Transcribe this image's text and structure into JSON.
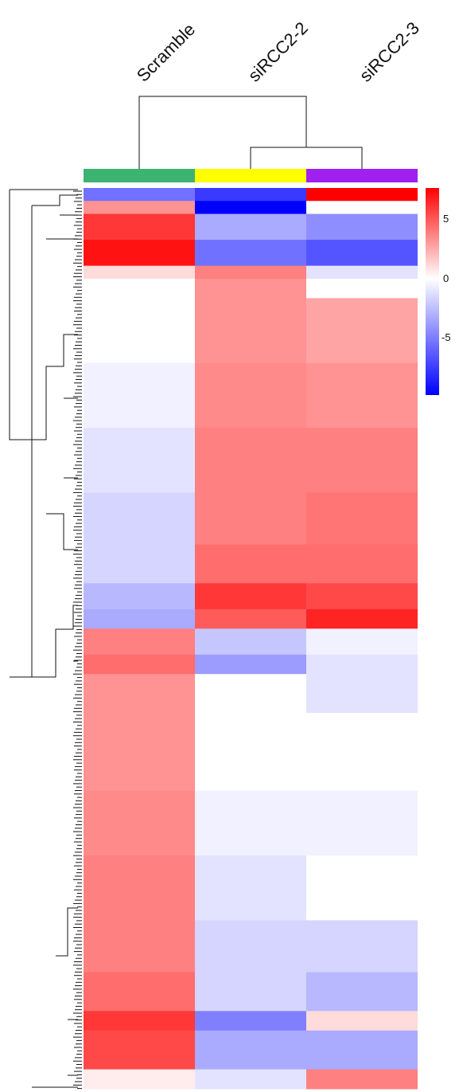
{
  "chart_data": {
    "type": "heatmap",
    "title": "",
    "columns": [
      "Scramble",
      "siRCC2-2",
      "siRCC2-3"
    ],
    "group_colors": [
      "#3cb371",
      "#ffff00",
      "#a020f0"
    ],
    "color_scale": {
      "low": "#0000ff",
      "mid": "#ffffff",
      "high": "#ff0000",
      "min": -9,
      "max": 7,
      "ticks": [
        5,
        0,
        -5
      ],
      "tick_labels": [
        "5",
        "0",
        "-5"
      ]
    },
    "column_dendrogram": "siRCC2-2 and siRCC2-3 cluster together; Scramble joins last",
    "row_dendrogram": "shown on left",
    "blocks": [
      {
        "rows": 2,
        "values": [
          -5,
          -7,
          7
        ]
      },
      {
        "rows": 2,
        "values": [
          3,
          -9,
          0
        ]
      },
      {
        "rows": 4,
        "values": [
          5.5,
          -3,
          -4
        ]
      },
      {
        "rows": 4,
        "values": [
          6.5,
          -5,
          -6
        ]
      },
      {
        "rows": 2,
        "values": [
          1,
          3.5,
          -1
        ]
      },
      {
        "rows": 3,
        "values": [
          0,
          3,
          0
        ]
      },
      {
        "rows": 10,
        "values": [
          0,
          3,
          2.5
        ]
      },
      {
        "rows": 10,
        "values": [
          -0.5,
          3.2,
          3
        ]
      },
      {
        "rows": 10,
        "values": [
          -1,
          3.5,
          3.5
        ]
      },
      {
        "rows": 8,
        "values": [
          -1.5,
          3.5,
          3.8
        ]
      },
      {
        "rows": 6,
        "values": [
          -1.5,
          4,
          4
        ]
      },
      {
        "rows": 4,
        "values": [
          -2.5,
          5.5,
          5
        ]
      },
      {
        "rows": 3,
        "values": [
          -3,
          4.5,
          6
        ]
      },
      {
        "rows": 4,
        "values": [
          3.5,
          -2,
          -0.5
        ]
      },
      {
        "rows": 3,
        "values": [
          4,
          -3.5,
          -1
        ]
      },
      {
        "rows": 6,
        "values": [
          3,
          0,
          -1
        ]
      },
      {
        "rows": 12,
        "values": [
          3,
          0,
          0
        ]
      },
      {
        "rows": 10,
        "values": [
          3.2,
          -0.5,
          -0.5
        ]
      },
      {
        "rows": 10,
        "values": [
          3.5,
          -1,
          0
        ]
      },
      {
        "rows": 8,
        "values": [
          3.5,
          -1.5,
          -1.5
        ]
      },
      {
        "rows": 6,
        "values": [
          4,
          -1.5,
          -2.5
        ]
      },
      {
        "rows": 3,
        "values": [
          5.5,
          -4.5,
          1
        ]
      },
      {
        "rows": 6,
        "values": [
          5,
          -3,
          -3
        ]
      },
      {
        "rows": 3,
        "values": [
          0.5,
          -1,
          3.5
        ]
      }
    ]
  }
}
